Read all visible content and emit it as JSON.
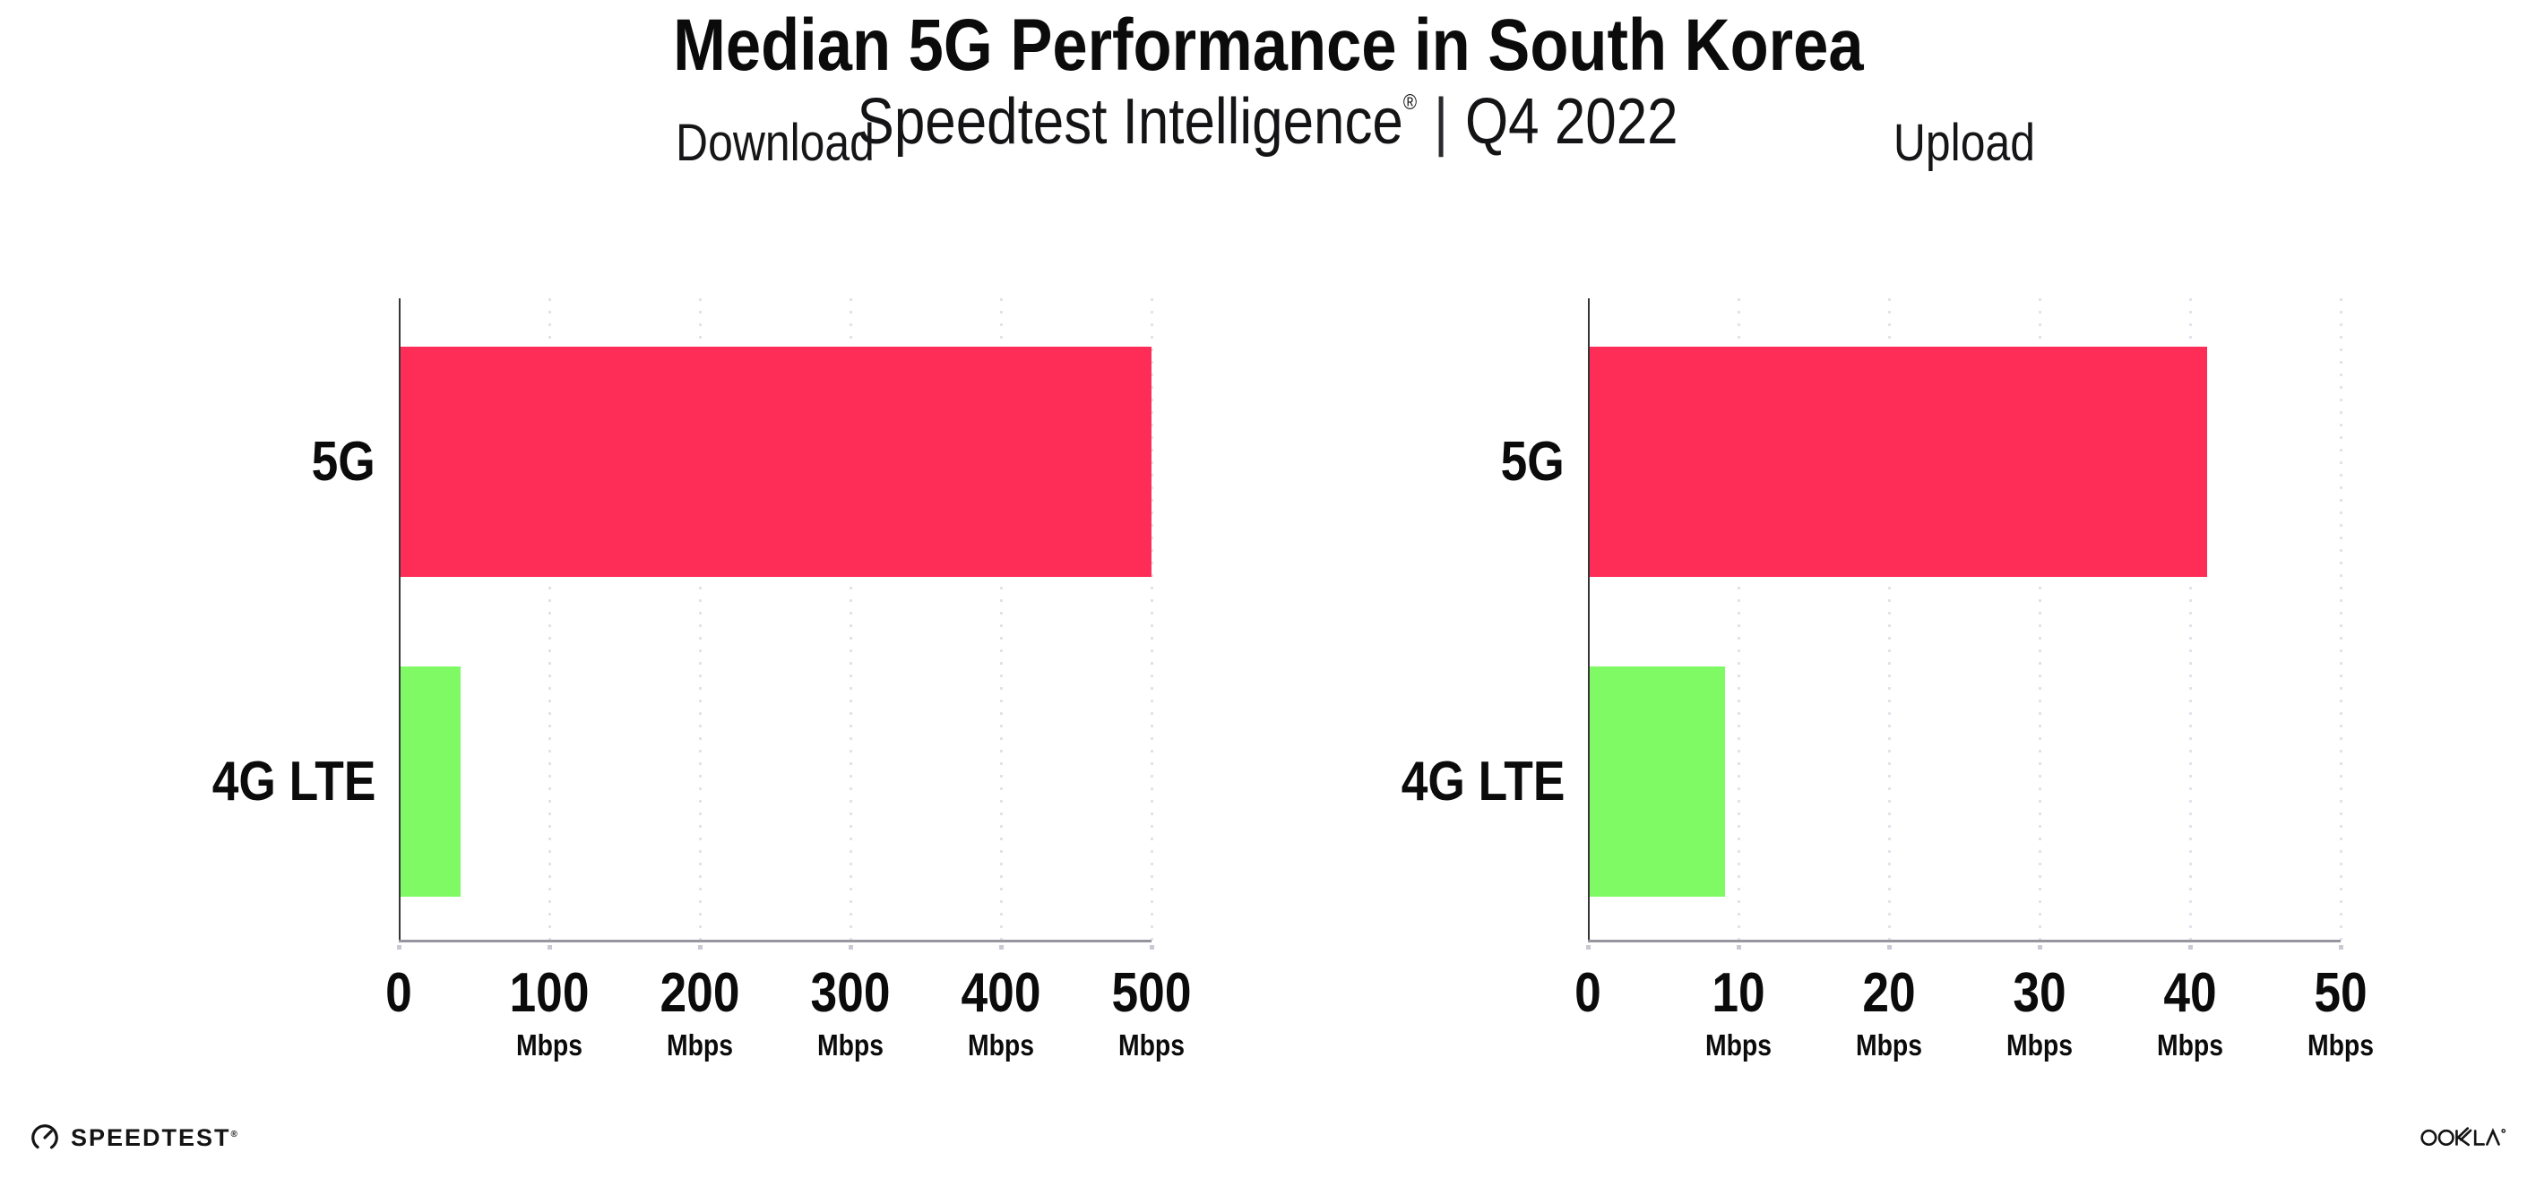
{
  "page": {
    "title": "Median 5G Performance in South Korea",
    "subtitle_brand": "Speedtest Intelligence",
    "subtitle_reg": "®",
    "subtitle_divider": "|",
    "subtitle_period": "Q4 2022"
  },
  "colors": {
    "bar_5g": "#fd2d58",
    "bar_4g_lte": "#7ffa64",
    "text": "#0b0b0c",
    "gridline": "#e2e2ec",
    "x_axis_line": "#96969e",
    "y_axis_line": "#35353a"
  },
  "chart_data": [
    {
      "type": "bar",
      "orientation": "horizontal",
      "title": "Download",
      "categories": [
        "5G",
        "4G LTE"
      ],
      "values": [
        499,
        40
      ],
      "unit": "Mbps",
      "xlabel": "",
      "ylabel": "",
      "xlim": [
        0,
        500
      ],
      "xticks": [
        0,
        100,
        200,
        300,
        400,
        500
      ],
      "tick_unit_label": "Mbps",
      "grid": "vertical-dotted",
      "legend": "none",
      "bar_colors": [
        "#fd2d58",
        "#7ffa64"
      ]
    },
    {
      "type": "bar",
      "orientation": "horizontal",
      "title": "Upload",
      "categories": [
        "5G",
        "4G LTE"
      ],
      "values": [
        41,
        9
      ],
      "unit": "Mbps",
      "xlabel": "",
      "ylabel": "",
      "xlim": [
        0,
        50
      ],
      "xticks": [
        0,
        10,
        20,
        30,
        40,
        50
      ],
      "tick_unit_label": "Mbps",
      "grid": "vertical-dotted",
      "legend": "none",
      "bar_colors": [
        "#fd2d58",
        "#7ffa64"
      ]
    }
  ],
  "footer": {
    "speedtest_logo_text": "SPEEDTEST",
    "speedtest_reg": "®",
    "ookla_logo_text": "OOKLA"
  }
}
